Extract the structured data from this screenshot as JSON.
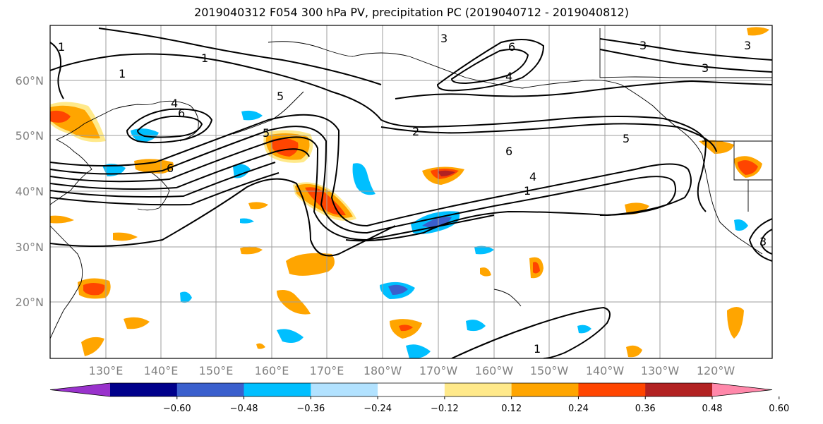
{
  "title": "2019040312 F054 300 hPa PV, precipitation PC (2019040712 - 2019040812)",
  "lat_labels": [
    "60°N",
    "50°N",
    "40°N",
    "30°N",
    "20°N"
  ],
  "lon_labels": [
    "130°E",
    "140°E",
    "150°E",
    "160°E",
    "170°E",
    "180°W",
    "170°W",
    "160°W",
    "150°W",
    "140°W",
    "130°W",
    "120°W"
  ],
  "colorbar": {
    "ticks": [
      "−0.60",
      "−0.48",
      "−0.36",
      "−0.24",
      "−0.12",
      "0.12",
      "0.24",
      "0.36",
      "0.48",
      "0.60"
    ],
    "colors": [
      "#9932cc",
      "#00008b",
      "#3a5fcd",
      "#00bfff",
      "#b2e2ff",
      "#ffffff",
      "#ffe98a",
      "#ffa500",
      "#ff4500",
      "#b22222",
      "#ff88aa"
    ]
  },
  "contour_labels": [
    "1",
    "1",
    "1",
    "2",
    "3",
    "3",
    "3",
    "3",
    "4",
    "4",
    "5",
    "5",
    "5",
    "6",
    "6",
    "6",
    "6",
    "1",
    "1",
    "4",
    "3"
  ],
  "colors": {
    "orange": "#ffa500",
    "light_orange": "#ffe98a",
    "red_orange": "#ff4500",
    "dark_red": "#b22222",
    "light_blue": "#b2e2ff",
    "cyan": "#00bfff",
    "blue": "#3a5fcd"
  }
}
